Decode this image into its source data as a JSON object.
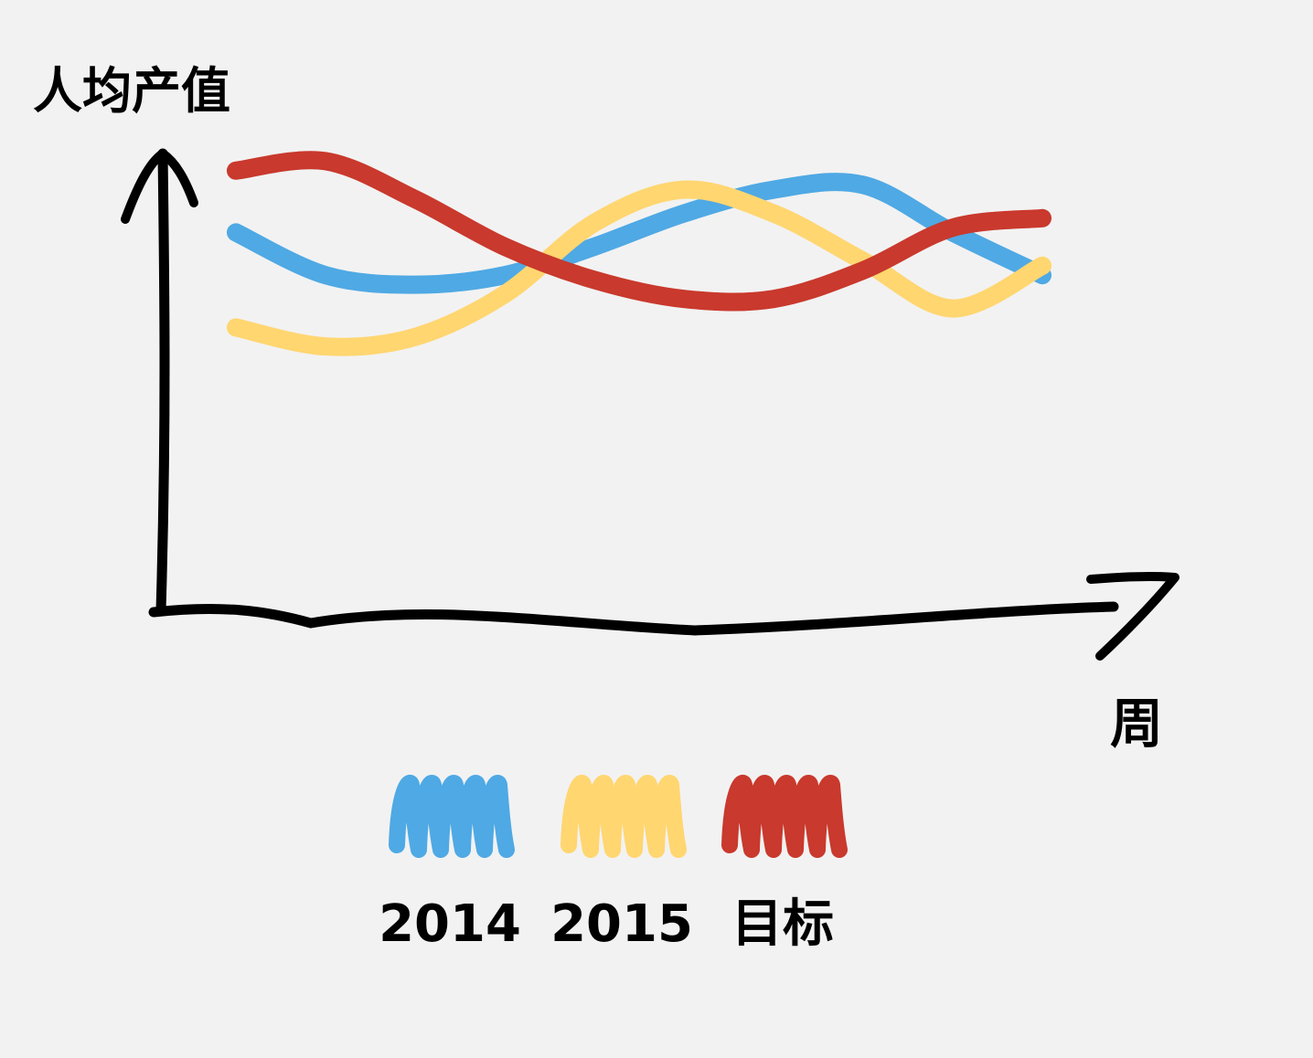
{
  "chart_data": {
    "type": "line",
    "title": "",
    "ylabel": "人均产值",
    "xlabel": "周",
    "x": [
      0,
      1,
      2,
      3,
      4,
      5,
      6,
      7,
      8,
      9
    ],
    "xlim": [
      0,
      10
    ],
    "ylim": [
      0,
      10
    ],
    "grid": false,
    "legend_position": "bottom-center",
    "series": [
      {
        "name": "2014",
        "color": "#4FA9E4",
        "values": [
          7.8,
          6.9,
          6.7,
          6.9,
          7.5,
          8.2,
          8.7,
          8.8,
          7.8,
          6.9
        ]
      },
      {
        "name": "2015",
        "color": "#FFD670",
        "values": [
          5.8,
          5.4,
          5.6,
          6.5,
          8.0,
          8.7,
          8.2,
          7.2,
          6.2,
          7.1
        ]
      },
      {
        "name": "目标",
        "color": "#C9392D",
        "values": [
          9.1,
          9.3,
          8.5,
          7.5,
          6.8,
          6.4,
          6.4,
          7.0,
          7.9,
          8.1
        ]
      }
    ]
  }
}
